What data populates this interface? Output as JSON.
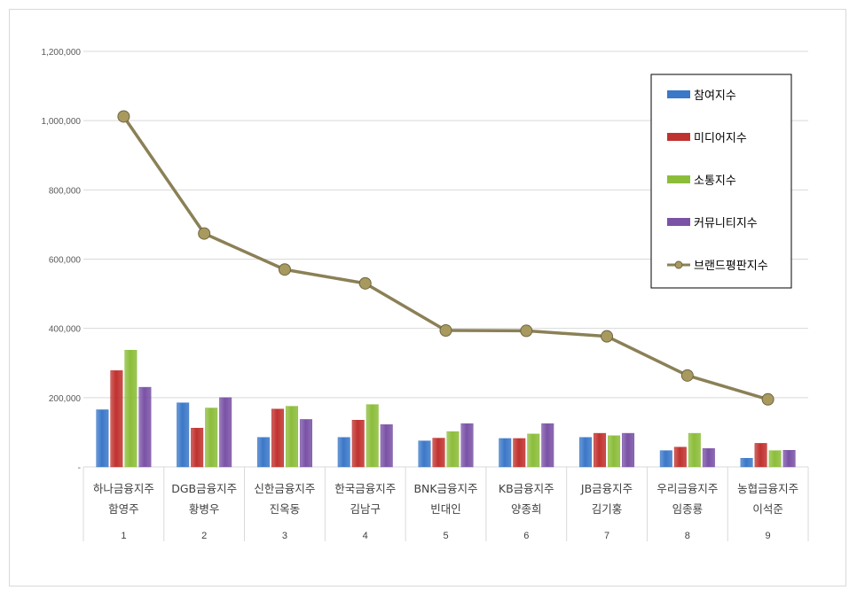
{
  "chart_data": {
    "type": "bar",
    "categories": [
      {
        "company": "하나금융지주",
        "person": "함영주",
        "rank": "1"
      },
      {
        "company": "DGB금융지주",
        "person": "황병우",
        "rank": "2"
      },
      {
        "company": "신한금융지주",
        "person": "진옥동",
        "rank": "3"
      },
      {
        "company": "한국금융지주",
        "person": "김남구",
        "rank": "4"
      },
      {
        "company": "BNK금융지주",
        "person": "빈대인",
        "rank": "5"
      },
      {
        "company": "KB금융지주",
        "person": "양종희",
        "rank": "6"
      },
      {
        "company": "JB금융지주",
        "person": "김기홍",
        "rank": "7"
      },
      {
        "company": "우리금융지주",
        "person": "임종룡",
        "rank": "8"
      },
      {
        "company": "농협금융지주",
        "person": "이석준",
        "rank": "9"
      }
    ],
    "series": [
      {
        "name": "참여지수",
        "type": "bar",
        "color": "#3b78c8",
        "values": [
          165000,
          185000,
          85000,
          85000,
          75000,
          82000,
          85000,
          47000,
          25000
        ]
      },
      {
        "name": "미디어지수",
        "type": "bar",
        "color": "#c0322f",
        "values": [
          278000,
          112000,
          167000,
          135000,
          83000,
          82000,
          97000,
          57000,
          68000
        ]
      },
      {
        "name": "소통지수",
        "type": "bar",
        "color": "#8cbd3a",
        "values": [
          337000,
          170000,
          175000,
          180000,
          102000,
          95000,
          90000,
          97000,
          47000
        ]
      },
      {
        "name": "커뮤니티지수",
        "type": "bar",
        "color": "#7a52a6",
        "values": [
          230000,
          200000,
          137000,
          122000,
          125000,
          125000,
          97000,
          53000,
          48000
        ]
      },
      {
        "name": "브랜드평판지수",
        "type": "line",
        "color": "#8b8056",
        "marker": "#a89a5e",
        "values": [
          1012000,
          674000,
          570000,
          530000,
          394000,
          393000,
          377000,
          264000,
          195000
        ]
      }
    ],
    "yticks": [
      "-",
      "200,000",
      "400,000",
      "600,000",
      "800,000",
      "1,000,000",
      "1,200,000"
    ],
    "ylim": [
      0,
      1200000
    ],
    "grid": true,
    "legend_position": "top-right"
  }
}
